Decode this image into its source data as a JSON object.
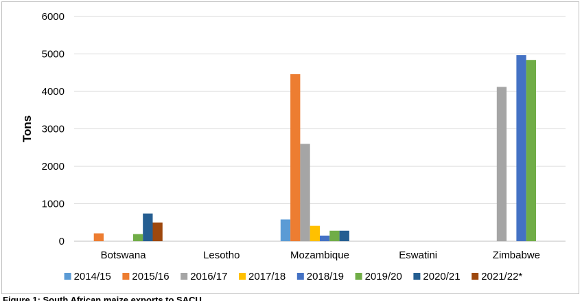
{
  "caption": "Figure 1: South African maize exports to SACU",
  "chart_data": {
    "type": "bar",
    "ylabel": "Tons",
    "xlabel": "",
    "ylim": [
      0,
      6000
    ],
    "yticks": [
      0,
      1000,
      2000,
      3000,
      4000,
      5000,
      6000
    ],
    "grid": true,
    "legend_position": "bottom",
    "categories": [
      "Botswana",
      "Lesotho",
      "Mozambique",
      "Eswatini",
      "Zimbabwe"
    ],
    "series": [
      {
        "name": "2014/15",
        "color": "#5b9bd5",
        "values": [
          0,
          0,
          580,
          0,
          0
        ]
      },
      {
        "name": "2015/16",
        "color": "#ed7d31",
        "values": [
          210,
          0,
          4460,
          0,
          0
        ]
      },
      {
        "name": "2016/17",
        "color": "#a5a5a5",
        "values": [
          0,
          0,
          2600,
          0,
          4120
        ]
      },
      {
        "name": "2017/18",
        "color": "#ffc000",
        "values": [
          0,
          0,
          410,
          0,
          0
        ]
      },
      {
        "name": "2018/19",
        "color": "#4472c4",
        "values": [
          0,
          0,
          150,
          0,
          4970
        ]
      },
      {
        "name": "2019/20",
        "color": "#70ad47",
        "values": [
          190,
          0,
          280,
          0,
          4840
        ]
      },
      {
        "name": "2020/21",
        "color": "#255e91",
        "values": [
          740,
          0,
          280,
          0,
          0
        ]
      },
      {
        "name": "2021/22*",
        "color": "#9e480e",
        "values": [
          500,
          0,
          0,
          0,
          0
        ]
      }
    ]
  }
}
